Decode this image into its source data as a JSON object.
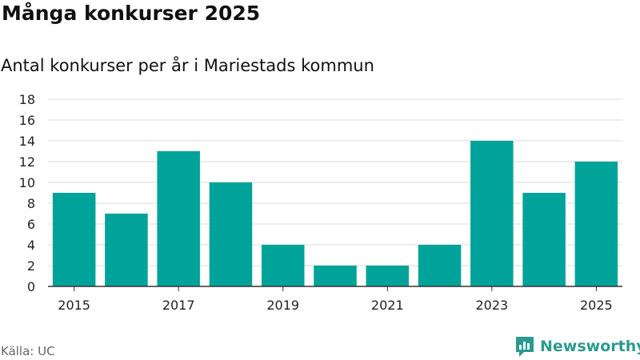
{
  "header": {
    "title": "Många konkurser 2025",
    "subtitle": "Antal konkurser per år i Mariestads kommun"
  },
  "footer": {
    "source": "Källa: UC",
    "brand": "Newsworthy"
  },
  "colors": {
    "bar": "#00a399",
    "grid": "#d9d9d9",
    "axis": "#333333",
    "brand": "#2b9a8f"
  },
  "chart_data": {
    "type": "bar",
    "title": "Många konkurser 2025",
    "subtitle": "Antal konkurser per år i Mariestads kommun",
    "xlabel": "",
    "ylabel": "",
    "categories": [
      "2015",
      "2016",
      "2017",
      "2018",
      "2019",
      "2020",
      "2021",
      "2022",
      "2023",
      "2024",
      "2025"
    ],
    "values": [
      9,
      7,
      13,
      10,
      4,
      2,
      2,
      4,
      14,
      9,
      12
    ],
    "x_tick_labels": [
      "2015",
      "2017",
      "2019",
      "2021",
      "2023",
      "2025"
    ],
    "y_ticks": [
      0,
      2,
      4,
      6,
      8,
      10,
      12,
      14,
      16,
      18
    ],
    "ylim": [
      0,
      18
    ],
    "grid": true,
    "legend": "none"
  }
}
